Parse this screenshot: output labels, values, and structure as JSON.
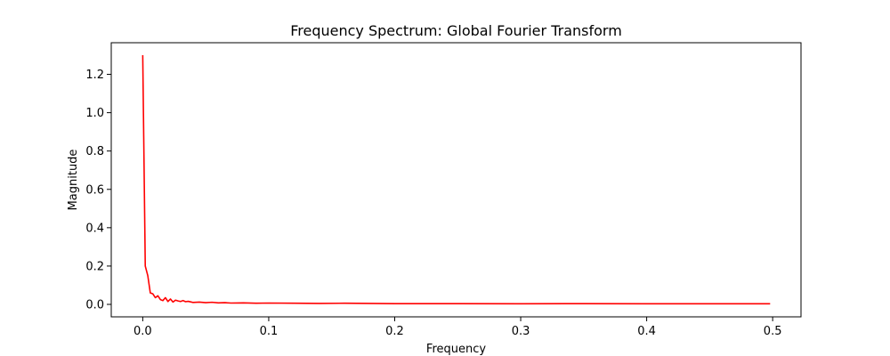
{
  "chart_data": {
    "type": "line",
    "title": "Frequency Spectrum: Global Fourier Transform",
    "xlabel": "Frequency",
    "ylabel": "Magnitude",
    "xlim": [
      -0.025,
      0.5225
    ],
    "ylim": [
      -0.065,
      1.365
    ],
    "xticks": [
      0.0,
      0.1,
      0.2,
      0.3,
      0.4,
      0.5
    ],
    "xtick_labels": [
      "0.0",
      "0.1",
      "0.2",
      "0.3",
      "0.4",
      "0.5"
    ],
    "yticks": [
      0.0,
      0.2,
      0.4,
      0.6,
      0.8,
      1.0,
      1.2
    ],
    "ytick_labels": [
      "0.0",
      "0.2",
      "0.4",
      "0.6",
      "0.8",
      "1.0",
      "1.2"
    ],
    "grid": false,
    "series": [
      {
        "color": "#ff0000",
        "x": [
          0.0,
          0.002,
          0.004,
          0.006,
          0.008,
          0.01,
          0.012,
          0.014,
          0.016,
          0.018,
          0.02,
          0.022,
          0.024,
          0.026,
          0.028,
          0.03,
          0.032,
          0.034,
          0.036,
          0.038,
          0.04,
          0.045,
          0.05,
          0.055,
          0.06,
          0.065,
          0.07,
          0.08,
          0.09,
          0.1,
          0.12,
          0.14,
          0.16,
          0.18,
          0.2,
          0.25,
          0.3,
          0.35,
          0.4,
          0.45,
          0.498
        ],
        "y": [
          1.3,
          0.2,
          0.15,
          0.06,
          0.055,
          0.035,
          0.045,
          0.025,
          0.02,
          0.035,
          0.015,
          0.028,
          0.012,
          0.022,
          0.018,
          0.015,
          0.02,
          0.014,
          0.016,
          0.013,
          0.01,
          0.012,
          0.009,
          0.011,
          0.008,
          0.009,
          0.007,
          0.008,
          0.006,
          0.007,
          0.006,
          0.005,
          0.006,
          0.005,
          0.004,
          0.004,
          0.003,
          0.004,
          0.003,
          0.003,
          0.003
        ]
      }
    ]
  }
}
